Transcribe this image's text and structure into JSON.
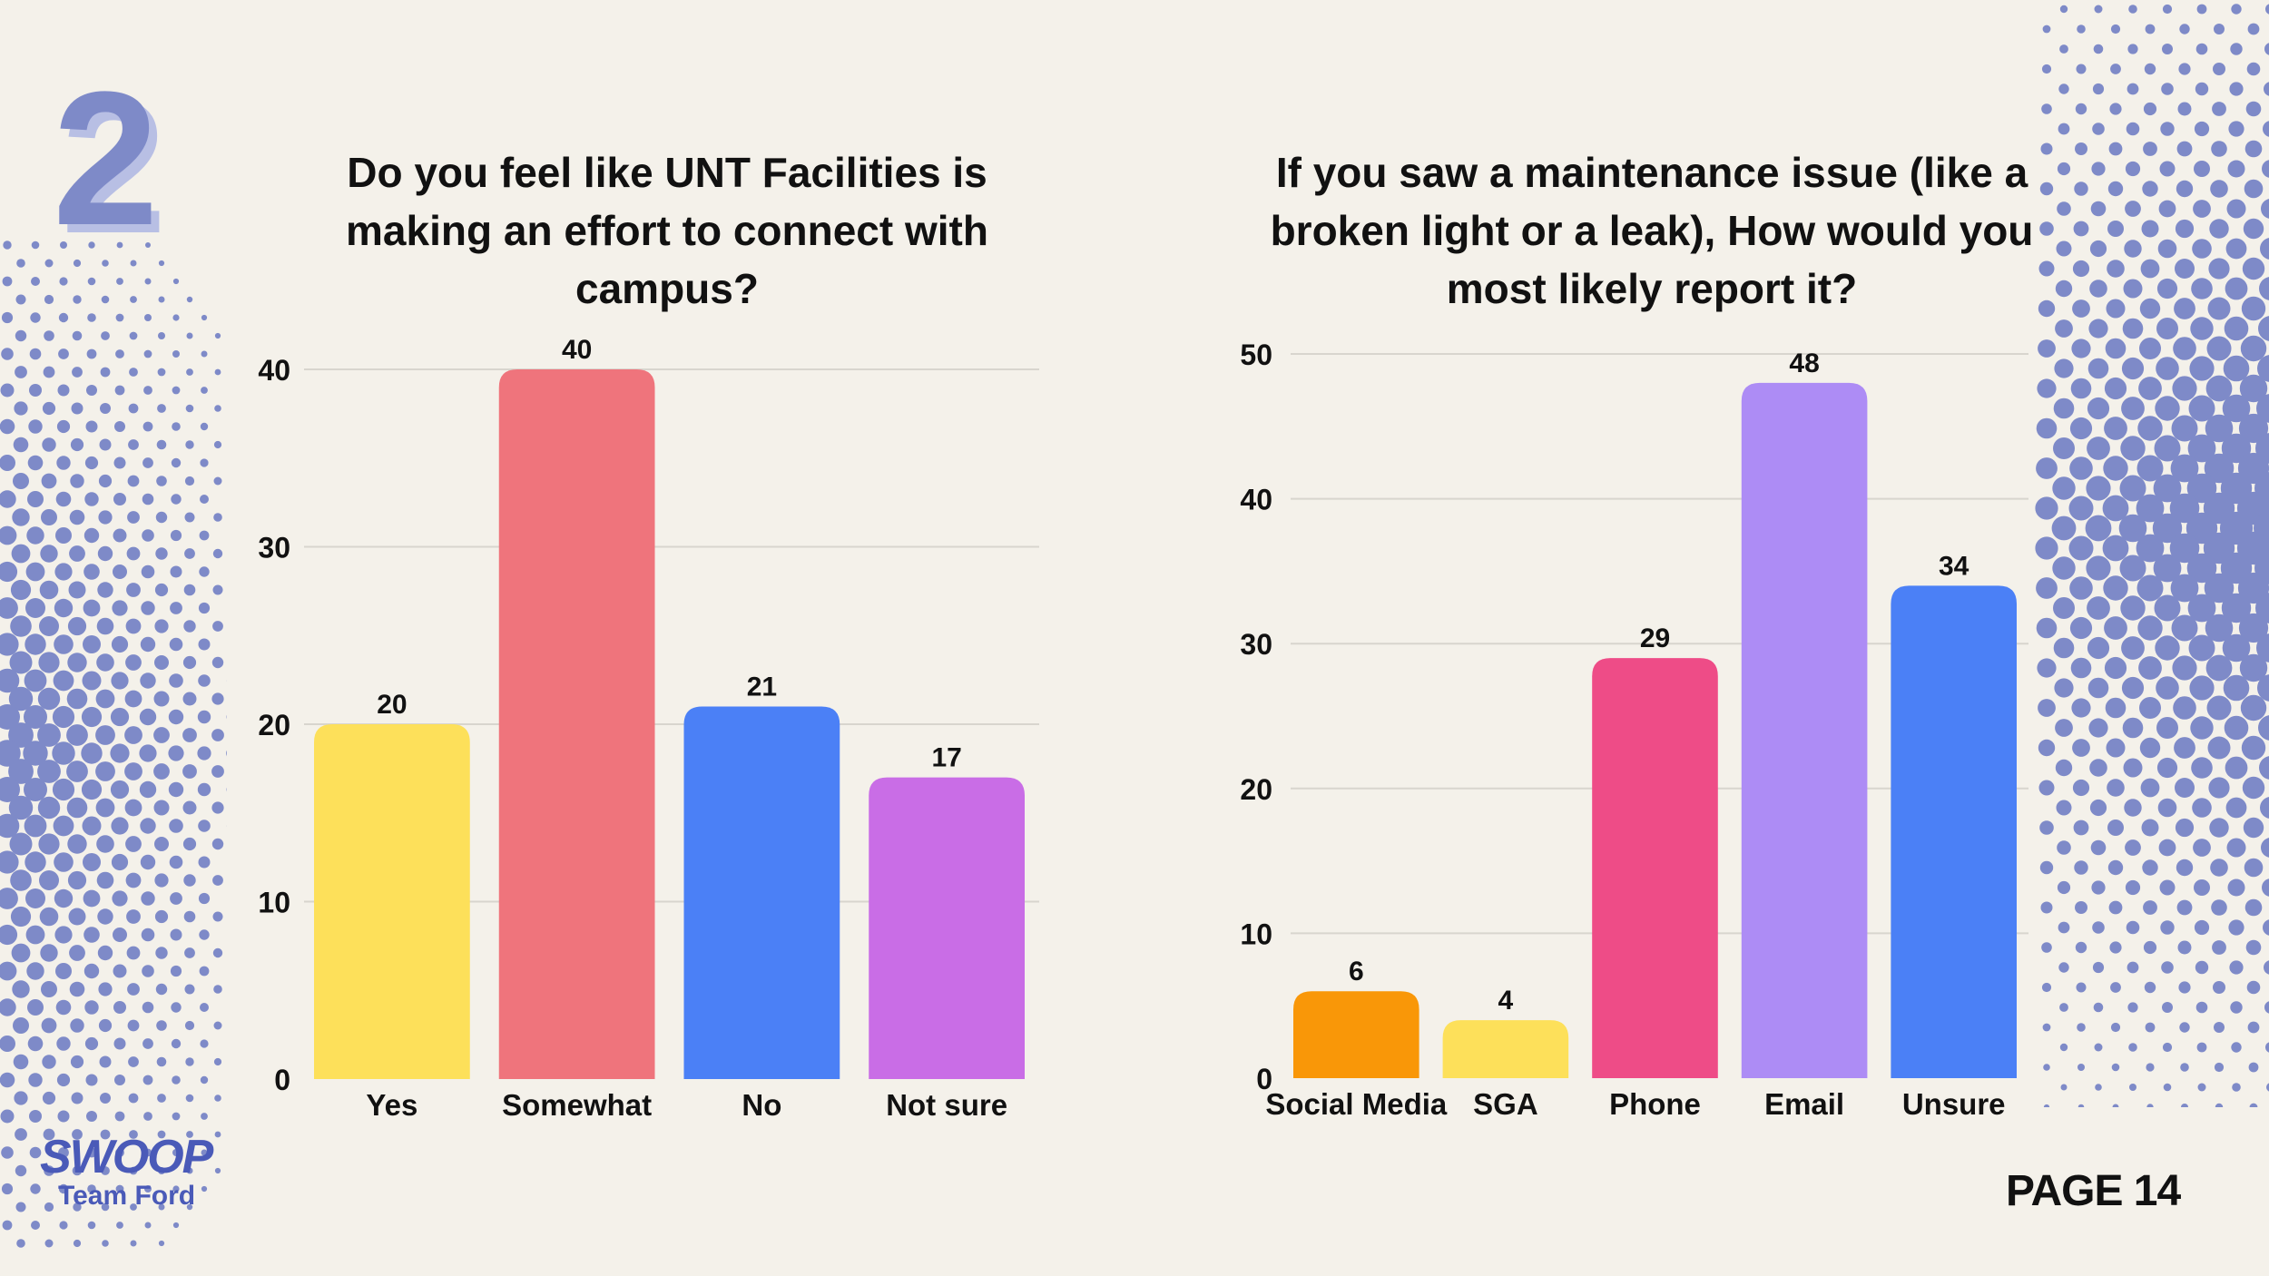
{
  "slide": {
    "section_number": "2",
    "page_label": "PAGE 14",
    "logo_text": "SWOOP",
    "logo_subtext": "Team Ford"
  },
  "colors": {
    "background": "#f4f1ea",
    "dots": "#7e8ac8",
    "gridline": "#d8d5ce",
    "text": "#111111"
  },
  "chart_data": [
    {
      "type": "bar",
      "title": "Do you feel like UNT Facilities is making an effort to connect with campus?",
      "categories": [
        "Yes",
        "Somewhat",
        "No",
        "Not sure"
      ],
      "values": [
        20,
        40,
        21,
        17
      ],
      "colors": [
        "#fde05a",
        "#ef747c",
        "#4b80f6",
        "#c96de6"
      ],
      "yticks": [
        0,
        10,
        20,
        30,
        40
      ],
      "ylim": [
        0,
        40
      ],
      "grid": true,
      "data_labels": true,
      "xlabel": "",
      "ylabel": ""
    },
    {
      "type": "bar",
      "title": "If you saw a maintenance issue (like a broken light or a leak), How would you most likely report it?",
      "categories": [
        "Social Media",
        "SGA",
        "Phone",
        "Email",
        "Unsure"
      ],
      "values": [
        6,
        4,
        29,
        48,
        34
      ],
      "colors": [
        "#f99708",
        "#fde05a",
        "#ee4c87",
        "#ad8cf5",
        "#4b80f6"
      ],
      "yticks": [
        0,
        10,
        20,
        30,
        40,
        50
      ],
      "ylim": [
        0,
        50
      ],
      "grid": true,
      "data_labels": true,
      "xlabel": "",
      "ylabel": ""
    }
  ]
}
